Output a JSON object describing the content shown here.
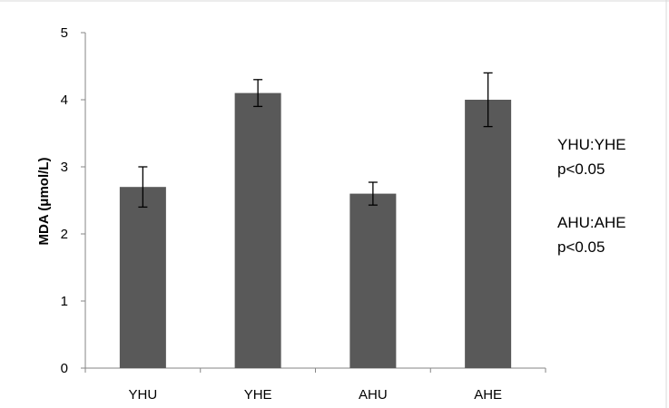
{
  "chart_data": {
    "type": "bar",
    "categories": [
      "YHU",
      "YHE",
      "AHU",
      "AHE"
    ],
    "values": [
      2.7,
      4.1,
      2.6,
      4.0
    ],
    "error_low": [
      2.4,
      3.9,
      2.43,
      3.6
    ],
    "error_high": [
      3.0,
      4.3,
      2.77,
      4.4
    ],
    "ylabel": "MDA (μmol/L)",
    "xlabel": "",
    "ylim": [
      0,
      5
    ],
    "yticks": [
      "0",
      "1",
      "2",
      "3",
      "4",
      "5"
    ],
    "bar_color": "#595959",
    "grid": false,
    "legend": "none"
  },
  "annotations": [
    {
      "line1": "YHU:YHE",
      "line2": "p<0.05"
    },
    {
      "line1": "AHU:AHE",
      "line2": "p<0.05"
    }
  ]
}
